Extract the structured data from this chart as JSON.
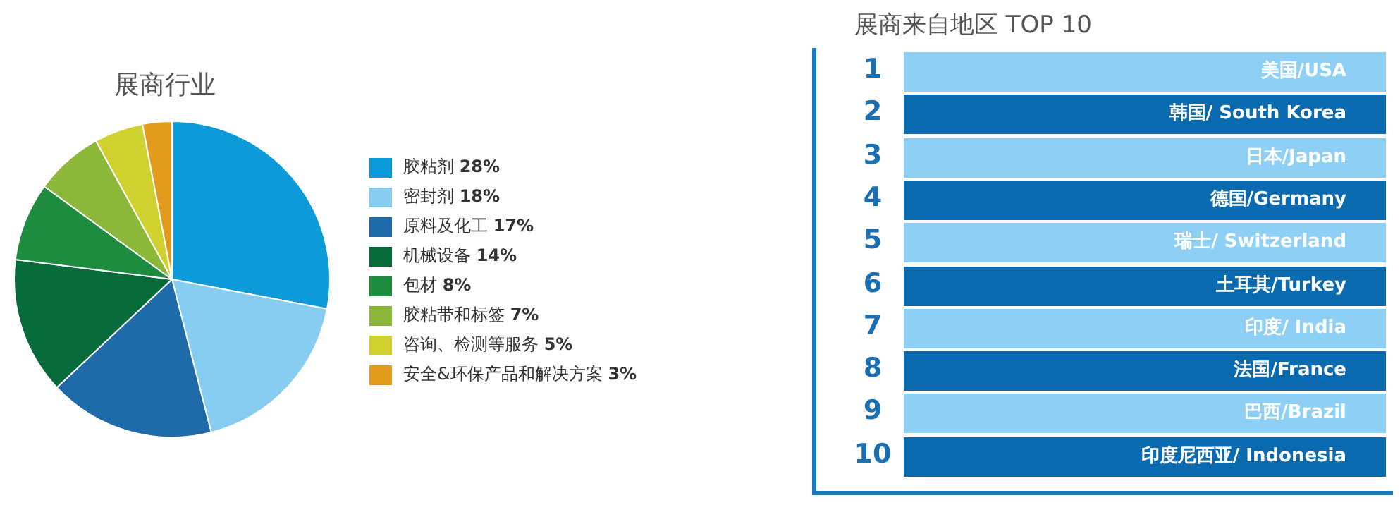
{
  "chart_data": [
    {
      "type": "pie",
      "title": "展商行业",
      "categories": [
        "胶粘剂",
        "密封剂",
        "原料及化工",
        "机械设备",
        "包材",
        "胶粘带和标签",
        "咨询、检测等服务",
        "安全&环保产品和解决方案"
      ],
      "values": [
        28,
        18,
        17,
        14,
        8,
        7,
        5,
        3
      ],
      "value_labels": [
        "28%",
        "18%",
        "17%",
        "14%",
        "8%",
        "7%",
        "5%",
        "3%"
      ],
      "colors": [
        "#0d9ad9",
        "#86cdf1",
        "#1f6aa8",
        "#076a3a",
        "#1e8c3e",
        "#8cb83a",
        "#cfd22e",
        "#e39b1e"
      ],
      "legend": "right"
    },
    {
      "type": "other",
      "title": "展商来自地区 TOP 10",
      "categories": [
        "美国/USA",
        "韩国/ South Korea",
        "日本/Japan",
        "德国/Germany",
        "瑞士/ Switzerland",
        "土耳其/Turkey",
        "印度/ India",
        "法国/France",
        "巴西/Brazil",
        "印度尼西亚/ Indonesia"
      ],
      "values": [
        1,
        2,
        3,
        4,
        5,
        6,
        7,
        8,
        9,
        10
      ],
      "colors": [
        "#8dcff5",
        "#0a6ab0",
        "#8dcff5",
        "#0a6ab0",
        "#8dcff5",
        "#0a6ab0",
        "#8dcff5",
        "#0a6ab0",
        "#8dcff5",
        "#0a6ab0"
      ],
      "data_labels": true
    }
  ]
}
